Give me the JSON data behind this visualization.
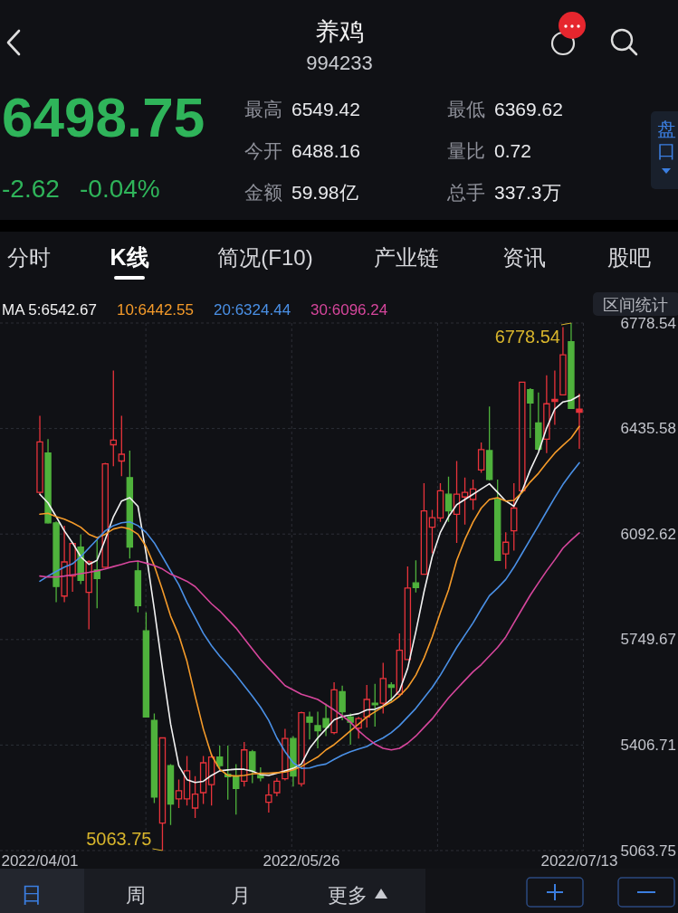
{
  "chart_data": {
    "type": "candlestick",
    "title": "养鸡",
    "subtitle": "994233",
    "categories": [
      "2022/04/01",
      null,
      null,
      null,
      null,
      null,
      null,
      null,
      null,
      null,
      null,
      null,
      null,
      null,
      null,
      null,
      null,
      null,
      null,
      null,
      null,
      null,
      null,
      null,
      null,
      null,
      null,
      null,
      null,
      null,
      null,
      null,
      "2022/05/26",
      null,
      null,
      null,
      null,
      null,
      null,
      null,
      null,
      null,
      null,
      null,
      null,
      null,
      null,
      null,
      null,
      null,
      null,
      null,
      null,
      null,
      null,
      null,
      null,
      null,
      null,
      null,
      null,
      null,
      null,
      null,
      null,
      null,
      "2022/07/13"
    ],
    "ohlc": [
      [
        6228,
        6477,
        6222,
        6392
      ],
      [
        6356,
        6401,
        6126,
        6129
      ],
      [
        6129,
        6134,
        5871,
        5922
      ],
      [
        5891,
        6120,
        5871,
        6002
      ],
      [
        5956,
        6064,
        5905,
        6062
      ],
      [
        6050,
        6092,
        5930,
        5942
      ],
      [
        5903,
        6007,
        5783,
        6002
      ],
      [
        5976,
        6075,
        5851,
        5948
      ],
      [
        5985,
        6324,
        5982,
        6321
      ],
      [
        6383,
        6624,
        6313,
        6398
      ],
      [
        6330,
        6477,
        6281,
        6352
      ],
      [
        6276,
        6364,
        6013,
        6050
      ],
      [
        5973,
        6002,
        5838,
        5860
      ],
      [
        5778,
        5838,
        5498,
        5498
      ],
      [
        5487,
        5509,
        5218,
        5238
      ],
      [
        5153,
        5430,
        5063.75,
        5430
      ],
      [
        5340,
        5345,
        5147,
        5215
      ],
      [
        5232,
        5295,
        5202,
        5258
      ],
      [
        5232,
        5371,
        5210,
        5323
      ],
      [
        5202,
        5306,
        5170,
        5247
      ],
      [
        5252,
        5371,
        5215,
        5349
      ],
      [
        5278,
        5379,
        5210,
        5368
      ],
      [
        5368,
        5405,
        5328,
        5340
      ],
      [
        5312,
        5405,
        5229,
        5304
      ],
      [
        5304,
        5345,
        5181,
        5266
      ],
      [
        5289,
        5417,
        5272,
        5391
      ],
      [
        5385,
        5391,
        5283,
        5323
      ],
      [
        5308,
        5334,
        5289,
        5300
      ],
      [
        5221,
        5281,
        5187,
        5244
      ],
      [
        5252,
        5300,
        5240,
        5289
      ],
      [
        5297,
        5459,
        5292,
        5428
      ],
      [
        5428,
        5436,
        5272,
        5306
      ],
      [
        5281,
        5515,
        5272,
        5512
      ],
      [
        5498,
        5515,
        5425,
        5481
      ],
      [
        5470,
        5515,
        5396,
        5453
      ],
      [
        5493,
        5541,
        5436,
        5464
      ],
      [
        5447,
        5611,
        5442,
        5586
      ],
      [
        5580,
        5600,
        5487,
        5515
      ],
      [
        5498,
        5509,
        5408,
        5481
      ],
      [
        5462,
        5498,
        5428,
        5493
      ],
      [
        5498,
        5602,
        5464,
        5555
      ],
      [
        5543,
        5606,
        5467,
        5538
      ],
      [
        5543,
        5674,
        5509,
        5623
      ],
      [
        5602,
        5611,
        5549,
        5594
      ],
      [
        5572,
        5770,
        5566,
        5715
      ],
      [
        5685,
        5987,
        5685,
        5917
      ],
      [
        5934,
        6007,
        5903,
        5919
      ],
      [
        5962,
        6258,
        5960,
        6168
      ],
      [
        6115,
        6171,
        6030,
        6146
      ],
      [
        6145,
        6258,
        6132,
        6233
      ],
      [
        6222,
        6279,
        6132,
        6168
      ],
      [
        6157,
        6330,
        6064,
        6222
      ],
      [
        6213,
        6276,
        6123,
        6228
      ],
      [
        6205,
        6270,
        6171,
        6239
      ],
      [
        6301,
        6390,
        6292,
        6367
      ],
      [
        6364,
        6507,
        6267,
        6270
      ],
      [
        6205,
        6270,
        6007,
        6007
      ],
      [
        6028,
        6098,
        5979,
        6066
      ],
      [
        6103,
        6258,
        6039,
        6177
      ],
      [
        6233,
        6586,
        6233,
        6586
      ],
      [
        6562,
        6567,
        6405,
        6519
      ],
      [
        6454,
        6553,
        6364,
        6369
      ],
      [
        6401,
        6609,
        6356,
        6516
      ],
      [
        6524,
        6624,
        6448,
        6530
      ],
      [
        6545,
        6765,
        6545,
        6675
      ],
      [
        6718,
        6778.54,
        6499,
        6501
      ],
      [
        6488.16,
        6549.42,
        6369.62,
        6498.75
      ]
    ],
    "colors": [
      "#e8333b",
      "#4fb23c",
      "#4fb23c",
      "#e8333b",
      "#e8333b",
      "#4fb23c",
      "#e8333b",
      "#4fb23c",
      "#e8333b",
      "#e8333b",
      "#e8333b",
      "#4fb23c",
      "#4fb23c",
      "#4fb23c",
      "#4fb23c",
      "#e8333b",
      "#4fb23c",
      "#e8333b",
      "#e8333b",
      "#e8333b",
      "#e8333b",
      "#e8333b",
      "#4fb23c",
      "#4fb23c",
      "#4fb23c",
      "#e8333b",
      "#4fb23c",
      "#4fb23c",
      "#e8333b",
      "#e8333b",
      "#e8333b",
      "#4fb23c",
      "#e8333b",
      "#4fb23c",
      "#4fb23c",
      "#4fb23c",
      "#e8333b",
      "#4fb23c",
      "#4fb23c",
      "#e8333b",
      "#e8333b",
      "#4fb23c",
      "#e8333b",
      "#4fb23c",
      "#e8333b",
      "#e8333b",
      "#4fb23c",
      "#e8333b",
      "#e8333b",
      "#e8333b",
      "#4fb23c",
      "#e8333b",
      "#e8333b",
      "#e8333b",
      "#e8333b",
      "#4fb23c",
      "#4fb23c",
      "#e8333b",
      "#e8333b",
      "#e8333b",
      "#4fb23c",
      "#4fb23c",
      "#e8333b",
      "#e8333b",
      "#e8333b",
      "#4fb23c",
      "#e8333b"
    ],
    "series": [
      {
        "name": "MA 5:6542.67",
        "type": "line",
        "color": "#f2f2f2",
        "values": [
          6222,
          6194,
          6149,
          6103,
          6064,
          6019,
          5994,
          6007,
          6075,
          6149,
          6200,
          6211,
          6183,
          6030,
          5849,
          5656,
          5475,
          5340,
          5294,
          5285,
          5289,
          5308,
          5323,
          5326,
          5328,
          5328,
          5322,
          5311,
          5308,
          5315,
          5323,
          5331,
          5345,
          5396,
          5430,
          5459,
          5489,
          5500,
          5504,
          5509,
          5521,
          5523,
          5534,
          5555,
          5583,
          5656,
          5775,
          5905,
          6019,
          6098,
          6149,
          6188,
          6205,
          6222,
          6239,
          6256,
          6228,
          6200,
          6183,
          6233,
          6301,
          6358,
          6437,
          6499,
          6522,
          6528,
          6542.67
        ]
      },
      {
        "name": "10:6442.55",
        "type": "line",
        "color": "#f59b2a",
        "values": [
          6157,
          6160,
          6149,
          6141,
          6129,
          6115,
          6092,
          6081,
          6092,
          6109,
          6115,
          6109,
          6092,
          6052,
          5990,
          5911,
          5826,
          5764,
          5679,
          5566,
          5459,
          5374,
          5328,
          5308,
          5306,
          5308,
          5313,
          5315,
          5315,
          5317,
          5319,
          5326,
          5337,
          5353,
          5368,
          5391,
          5408,
          5430,
          5453,
          5475,
          5498,
          5515,
          5532,
          5546,
          5566,
          5594,
          5634,
          5690,
          5758,
          5837,
          5911,
          6007,
          6075,
          6132,
          6177,
          6205,
          6211,
          6200,
          6202,
          6228,
          6262,
          6290,
          6324,
          6356,
          6381,
          6405,
          6442.55
        ]
      },
      {
        "name": "20:6324.44",
        "type": "line",
        "color": "#4a90e6",
        "values": [
          5939,
          5956,
          5971,
          5985,
          5996,
          6019,
          6047,
          6075,
          6103,
          6120,
          6129,
          6132,
          6120,
          6098,
          6064,
          6019,
          5973,
          5928,
          5871,
          5821,
          5770,
          5730,
          5696,
          5666,
          5634,
          5600,
          5566,
          5530,
          5487,
          5430,
          5385,
          5349,
          5331,
          5332,
          5340,
          5345,
          5360,
          5374,
          5385,
          5394,
          5402,
          5417,
          5430,
          5447,
          5470,
          5498,
          5526,
          5560,
          5594,
          5634,
          5679,
          5724,
          5764,
          5804,
          5849,
          5892,
          5917,
          5945,
          5985,
          6030,
          6075,
          6120,
          6166,
          6211,
          6254,
          6290,
          6324.44
        ]
      },
      {
        "name": "30:6096.24",
        "type": "line",
        "color": "#d6469c",
        "values": [
          5956,
          5953,
          5953,
          5956,
          5960,
          5964,
          5968,
          5973,
          5979,
          5987,
          5994,
          6002,
          6005,
          5998,
          5990,
          5979,
          5962,
          5951,
          5939,
          5922,
          5894,
          5866,
          5843,
          5815,
          5787,
          5753,
          5719,
          5685,
          5656,
          5628,
          5600,
          5586,
          5572,
          5564,
          5555,
          5538,
          5521,
          5502,
          5481,
          5453,
          5430,
          5410,
          5396,
          5391,
          5396,
          5413,
          5436,
          5464,
          5492,
          5526,
          5560,
          5589,
          5617,
          5645,
          5668,
          5696,
          5724,
          5758,
          5804,
          5849,
          5894,
          5934,
          5973,
          6009,
          6047,
          6073,
          6096.24
        ]
      }
    ],
    "ylim": [
      5063.75,
      6778.54
    ],
    "yticks": [
      6778.54,
      6435.58,
      6092.62,
      5749.67,
      5406.71,
      5063.75
    ],
    "grid": true,
    "legend": "top left",
    "annotations": [
      "6498.75",
      "-2.62",
      "-0.04%",
      "最高",
      "6549.42",
      "最低",
      "6369.62",
      "今开",
      "6488.16",
      "量比",
      "0.72",
      "金额",
      "59.98亿",
      "总手",
      "337.3万",
      "盘口",
      "分时",
      "K线",
      "简况(F10)",
      "产业链",
      "资讯",
      "股吧",
      "区间统计",
      "日",
      "周",
      "月",
      "更多",
      "6778.54",
      "5063.75"
    ]
  }
}
